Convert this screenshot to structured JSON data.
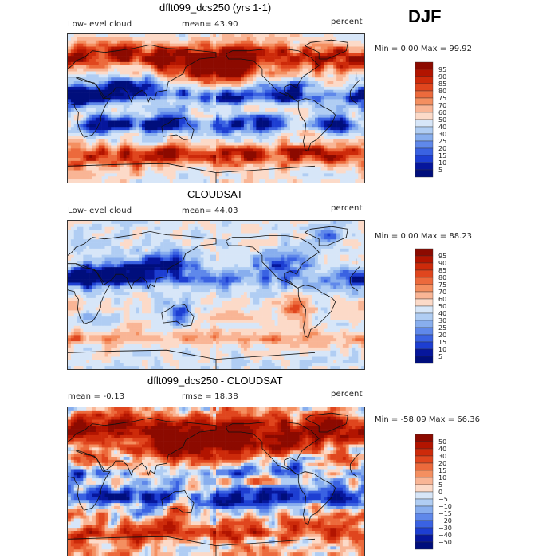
{
  "season": "DJF",
  "panels": [
    {
      "title": "dflt099_dcs250 (yrs 1-1)",
      "left_label": "Low-level cloud",
      "center_label": "mean=  43.90",
      "right_label": "percent",
      "minmax": "Min =   0.00 Max =  99.92",
      "field": "model",
      "colorbar_labels": [
        "95",
        "90",
        "85",
        "80",
        "75",
        "70",
        "60",
        "50",
        "40",
        "30",
        "25",
        "20",
        "15",
        "10",
        "5"
      ],
      "colorbar_colors": [
        "#8c0a00",
        "#b21400",
        "#cd2a0a",
        "#e0461e",
        "#ec6a3c",
        "#f48f60",
        "#f9b595",
        "#fcdac8",
        "#d7e6f8",
        "#b0cdf3",
        "#88aeee",
        "#5f88ea",
        "#3a62e2",
        "#1d3ed2",
        "#06169c",
        "#000e7c"
      ]
    },
    {
      "title": "CLOUDSAT",
      "left_label": "Low-level cloud",
      "center_label": "mean=  44.03",
      "right_label": "percent",
      "minmax": "Min =   0.00 Max =  88.23",
      "field": "obs",
      "colorbar_labels": [
        "95",
        "90",
        "85",
        "80",
        "75",
        "70",
        "60",
        "50",
        "40",
        "30",
        "25",
        "20",
        "15",
        "10",
        "5"
      ],
      "colorbar_colors": [
        "#8c0a00",
        "#b21400",
        "#cd2a0a",
        "#e0461e",
        "#ec6a3c",
        "#f48f60",
        "#f9b595",
        "#fcdac8",
        "#d7e6f8",
        "#b0cdf3",
        "#88aeee",
        "#5f88ea",
        "#3a62e2",
        "#1d3ed2",
        "#06169c",
        "#000e7c"
      ]
    },
    {
      "title": "dflt099_dcs250 - CLOUDSAT",
      "left_label": "mean =  -0.13",
      "center_label": "rmse =  18.38",
      "right_label": "percent",
      "minmax": "Min = -58.09 Max =  66.36",
      "field": "diff",
      "colorbar_labels": [
        "50",
        "40",
        "30",
        "20",
        "15",
        "10",
        "5",
        "0",
        "−5",
        "−10",
        "−15",
        "−20",
        "−30",
        "−40",
        "−50"
      ],
      "colorbar_colors": [
        "#8c0a00",
        "#b21400",
        "#cd2a0a",
        "#e0461e",
        "#ec6a3c",
        "#f48f60",
        "#f9b595",
        "#fcdac8",
        "#d7e6f8",
        "#b0cdf3",
        "#88aeee",
        "#5f88ea",
        "#3a62e2",
        "#1d3ed2",
        "#06169c",
        "#000e7c"
      ]
    }
  ]
}
